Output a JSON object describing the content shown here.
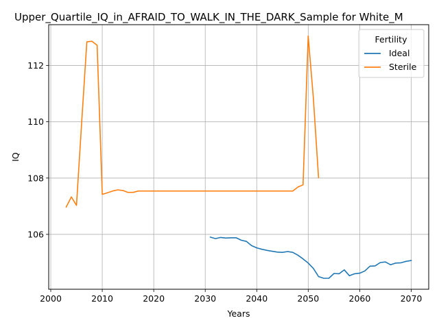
{
  "chart_data": {
    "type": "line",
    "title": "Upper_Quartile_IQ_in_AFRAID_TO_WALK_IN_THE_DARK_Sample for White_M",
    "xlabel": "Years",
    "ylabel": "IQ",
    "xlim": [
      1999.6,
      2073.4
    ],
    "ylim": [
      104.05,
      113.45
    ],
    "xticks": [
      2000,
      2010,
      2020,
      2030,
      2040,
      2050,
      2060,
      2070
    ],
    "yticks": [
      106,
      108,
      110,
      112
    ],
    "grid": true,
    "legend": {
      "title": "Fertility",
      "placement": "top-right"
    },
    "series": [
      {
        "name": "Ideal",
        "color": "#1f77b4",
        "points": [
          [
            2031,
            105.9
          ],
          [
            2032,
            105.85
          ],
          [
            2033,
            105.89
          ],
          [
            2034,
            105.87
          ],
          [
            2035,
            105.88
          ],
          [
            2036,
            105.88
          ],
          [
            2037,
            105.79
          ],
          [
            2038,
            105.75
          ],
          [
            2039,
            105.6
          ],
          [
            2040,
            105.52
          ],
          [
            2041,
            105.47
          ],
          [
            2042,
            105.43
          ],
          [
            2043,
            105.4
          ],
          [
            2044,
            105.37
          ],
          [
            2045,
            105.36
          ],
          [
            2046,
            105.39
          ],
          [
            2047,
            105.36
          ],
          [
            2048,
            105.26
          ],
          [
            2049,
            105.13
          ],
          [
            2050,
            104.98
          ],
          [
            2051,
            104.79
          ],
          [
            2052,
            104.5
          ],
          [
            2053,
            104.44
          ],
          [
            2054,
            104.44
          ],
          [
            2055,
            104.61
          ],
          [
            2056,
            104.6
          ],
          [
            2057,
            104.74
          ],
          [
            2058,
            104.53
          ],
          [
            2059,
            104.6
          ],
          [
            2060,
            104.62
          ],
          [
            2061,
            104.7
          ],
          [
            2062,
            104.87
          ],
          [
            2063,
            104.88
          ],
          [
            2064,
            105.0
          ],
          [
            2065,
            105.02
          ],
          [
            2066,
            104.92
          ],
          [
            2067,
            104.98
          ],
          [
            2068,
            104.99
          ],
          [
            2069,
            105.04
          ],
          [
            2070,
            105.07
          ]
        ]
      },
      {
        "name": "Sterile",
        "color": "#ff7f0e",
        "points": [
          [
            2003,
            106.97
          ],
          [
            2004,
            107.33
          ],
          [
            2005,
            107.03
          ],
          [
            2006,
            109.95
          ],
          [
            2007,
            112.84
          ],
          [
            2008,
            112.86
          ],
          [
            2009,
            112.72
          ],
          [
            2010,
            107.42
          ],
          [
            2011,
            107.48
          ],
          [
            2012,
            107.54
          ],
          [
            2013,
            107.58
          ],
          [
            2014,
            107.56
          ],
          [
            2015,
            107.49
          ],
          [
            2016,
            107.49
          ],
          [
            2017,
            107.54
          ],
          [
            2018,
            107.54
          ],
          [
            2020,
            107.54
          ],
          [
            2025,
            107.54
          ],
          [
            2030,
            107.54
          ],
          [
            2035,
            107.54
          ],
          [
            2040,
            107.54
          ],
          [
            2045,
            107.54
          ],
          [
            2047,
            107.54
          ],
          [
            2048,
            107.68
          ],
          [
            2049,
            107.76
          ],
          [
            2050,
            113.05
          ],
          [
            2051,
            110.85
          ],
          [
            2052,
            108.02
          ]
        ]
      }
    ]
  }
}
